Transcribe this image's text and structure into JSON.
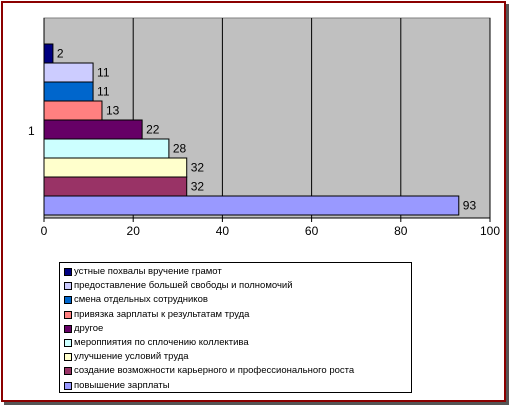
{
  "chart_data": {
    "type": "bar",
    "orientation": "horizontal",
    "category_label": "1",
    "series": [
      {
        "name": "устные похвалы вручение грамот",
        "value": 2,
        "color": "#000080"
      },
      {
        "name": "предоставление большей свободы и полномочий",
        "value": 11,
        "color": "#ccccff"
      },
      {
        "name": "смена отдельных сотрудников",
        "value": 11,
        "color": "#0066cc"
      },
      {
        "name": "привязка зарплаты к результатам труда",
        "value": 13,
        "color": "#ff8080"
      },
      {
        "name": "другое",
        "value": 22,
        "color": "#660066"
      },
      {
        "name": "мероппиятия по сплочению коллектива",
        "value": 28,
        "color": "#ccffff"
      },
      {
        "name": "улучшение условий труда",
        "value": 32,
        "color": "#ffffcc"
      },
      {
        "name": "создание возможности карьерного и профессионального роста",
        "value": 32,
        "color": "#993366"
      },
      {
        "name": "повышение зарплаты",
        "value": 93,
        "color": "#9999ff"
      }
    ],
    "xlim": [
      0,
      100
    ],
    "xticks": [
      "0",
      "20",
      "40",
      "60",
      "80",
      "100"
    ],
    "grid": true,
    "plot_background": "#c0c0c0",
    "legend_position": "bottom"
  }
}
